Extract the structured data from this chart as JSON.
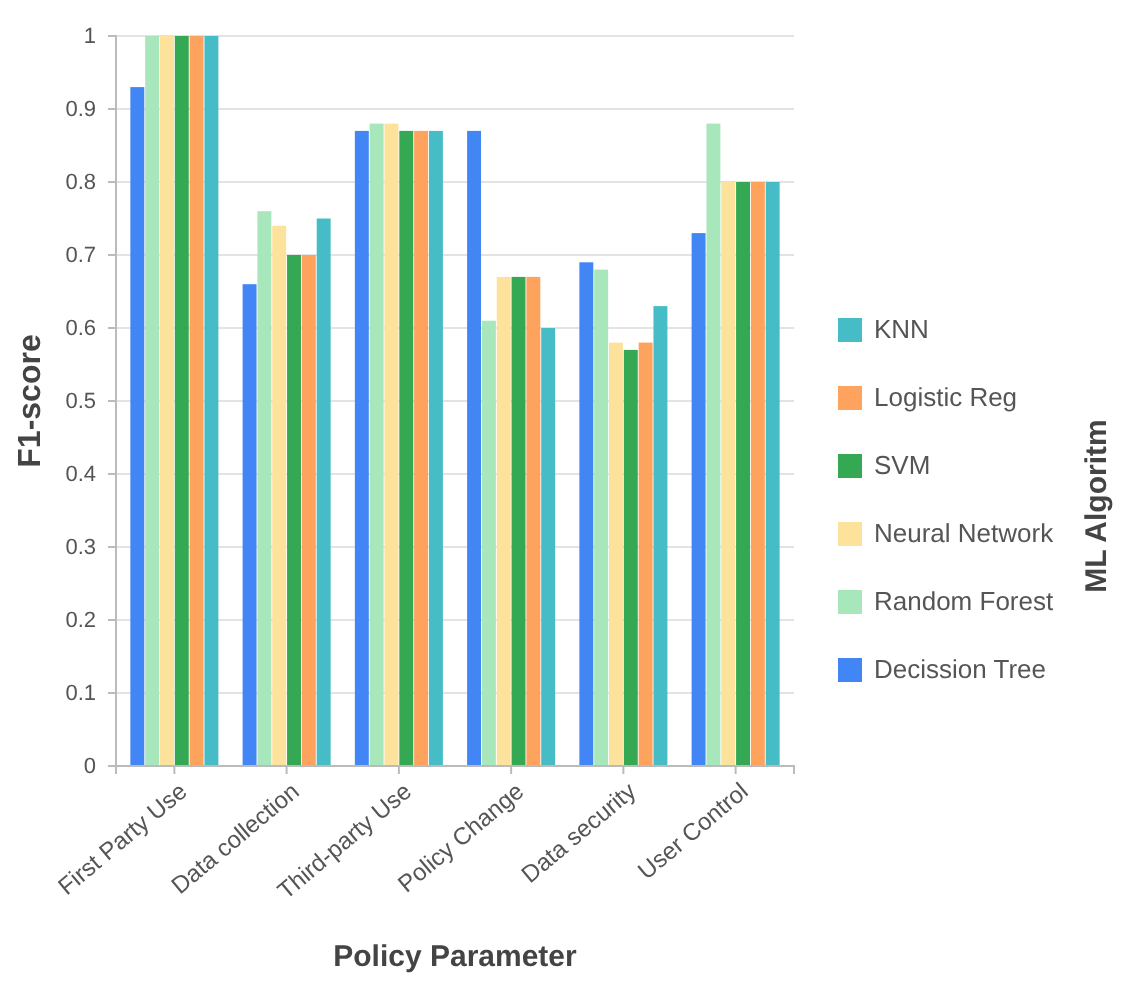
{
  "chart_data": {
    "type": "bar",
    "xlabel": "Policy Parameter",
    "ylabel": "F1-score",
    "legend_title": "ML Algoritm",
    "legend": "right",
    "grid": "y",
    "categories": [
      "First Party Use",
      "Data collection",
      "Third-party Use",
      "Policy Change",
      "Data security",
      "User Control"
    ],
    "ylim": [
      0,
      1
    ],
    "yticks": [
      0,
      0.1,
      0.2,
      0.3,
      0.4,
      0.5,
      0.6,
      0.7,
      0.8,
      0.9,
      1
    ],
    "series": [
      {
        "name": "Decission Tree",
        "color": "#4285f4",
        "values": [
          0.93,
          0.66,
          0.87,
          0.87,
          0.69,
          0.73
        ]
      },
      {
        "name": "Random Forest",
        "color": "#a8e6bc",
        "values": [
          1.0,
          0.76,
          0.88,
          0.61,
          0.68,
          0.88
        ]
      },
      {
        "name": "Neural Network",
        "color": "#fde29b",
        "values": [
          1.0,
          0.74,
          0.88,
          0.67,
          0.58,
          0.8
        ]
      },
      {
        "name": "SVM",
        "color": "#34a853",
        "values": [
          1.0,
          0.7,
          0.87,
          0.67,
          0.57,
          0.8
        ]
      },
      {
        "name": "Logistic Reg",
        "color": "#fda35e",
        "values": [
          1.0,
          0.7,
          0.87,
          0.67,
          0.58,
          0.8
        ]
      },
      {
        "name": "KNN",
        "color": "#46bdc6",
        "values": [
          1.0,
          0.75,
          0.87,
          0.6,
          0.63,
          0.8
        ]
      }
    ]
  }
}
